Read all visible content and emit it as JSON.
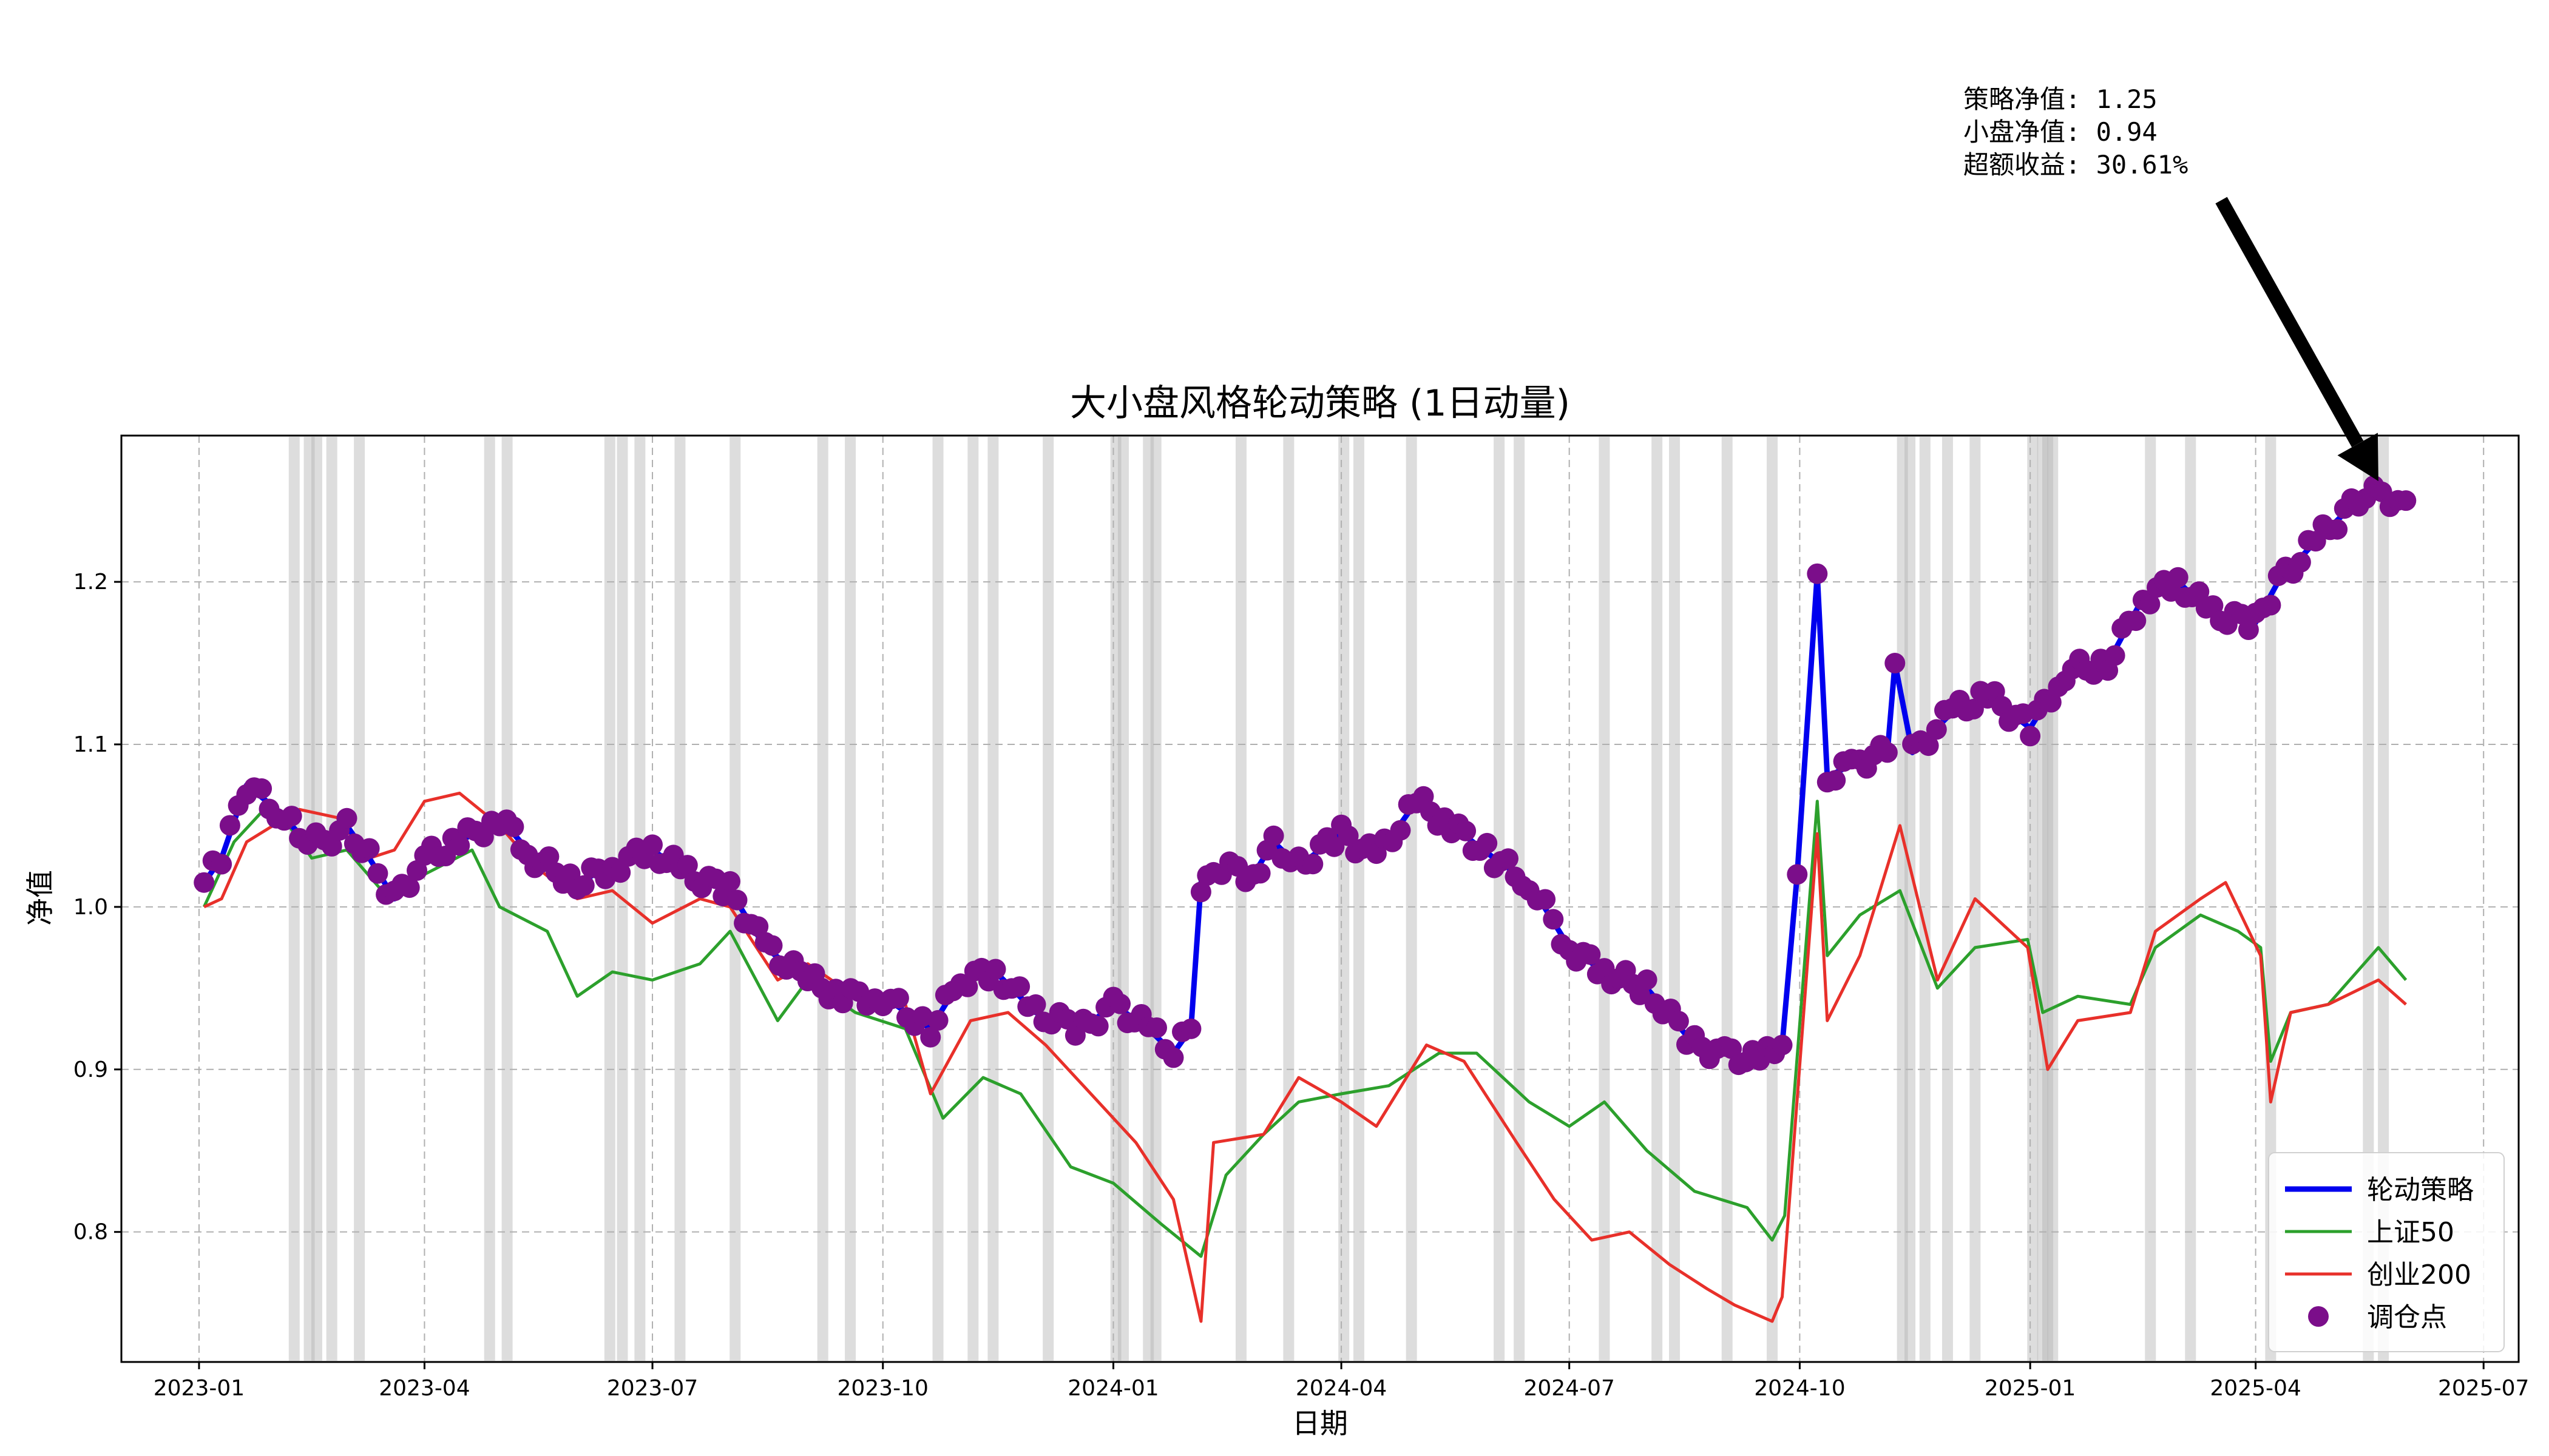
{
  "chart_data": {
    "type": "line",
    "title": "大小盘风格轮动策略 (1日动量)",
    "xlabel": "日期",
    "ylabel": "净值",
    "xlim": [
      "2022-12-01",
      "2025-07-15"
    ],
    "ylim": [
      0.72,
      1.29
    ],
    "grid": true,
    "legend_position": "lower-right",
    "x_ticks": [
      "2023-01",
      "2023-04",
      "2023-07",
      "2023-10",
      "2024-01",
      "2024-04",
      "2024-07",
      "2024-10",
      "2025-01",
      "2025-04",
      "2025-07"
    ],
    "y_ticks": [
      {
        "value": 0.8,
        "label": "0.8"
      },
      {
        "value": 0.9,
        "label": "0.9"
      },
      {
        "value": 1.0,
        "label": "1.0"
      },
      {
        "value": 1.1,
        "label": "1.1"
      },
      {
        "value": 1.2,
        "label": "1.2"
      }
    ],
    "series": [
      {
        "name": "轮动策略",
        "color": "#0000ee",
        "points": [
          [
            "2023-01-03",
            1.015
          ],
          [
            "2023-01-10",
            1.03
          ],
          [
            "2023-01-20",
            1.075
          ],
          [
            "2023-02-01",
            1.06
          ],
          [
            "2023-02-10",
            1.045
          ],
          [
            "2023-02-20",
            1.04
          ],
          [
            "2023-03-01",
            1.05
          ],
          [
            "2023-03-10",
            1.03
          ],
          [
            "2023-03-20",
            1.005
          ],
          [
            "2023-04-01",
            1.03
          ],
          [
            "2023-04-15",
            1.04
          ],
          [
            "2023-05-01",
            1.055
          ],
          [
            "2023-05-15",
            1.03
          ],
          [
            "2023-06-01",
            1.015
          ],
          [
            "2023-06-15",
            1.025
          ],
          [
            "2023-07-01",
            1.035
          ],
          [
            "2023-07-15",
            1.02
          ],
          [
            "2023-08-01",
            1.01
          ],
          [
            "2023-08-15",
            0.975
          ],
          [
            "2023-09-01",
            0.955
          ],
          [
            "2023-09-15",
            0.945
          ],
          [
            "2023-10-01",
            0.945
          ],
          [
            "2023-10-20",
            0.925
          ],
          [
            "2023-11-01",
            0.955
          ],
          [
            "2023-11-15",
            0.96
          ],
          [
            "2023-12-01",
            0.935
          ],
          [
            "2023-12-20",
            0.925
          ],
          [
            "2024-01-01",
            0.94
          ],
          [
            "2024-01-15",
            0.925
          ],
          [
            "2024-01-25",
            0.91
          ],
          [
            "2024-02-01",
            0.925
          ],
          [
            "2024-02-05",
            1.015
          ],
          [
            "2024-02-10",
            1.025
          ],
          [
            "2024-02-26",
            1.02
          ],
          [
            "2024-03-05",
            1.04
          ],
          [
            "2024-03-15",
            1.025
          ],
          [
            "2024-04-01",
            1.045
          ],
          [
            "2024-04-15",
            1.03
          ],
          [
            "2024-05-01",
            1.065
          ],
          [
            "2024-05-15",
            1.05
          ],
          [
            "2024-06-01",
            1.03
          ],
          [
            "2024-06-15",
            1.015
          ],
          [
            "2024-07-01",
            0.975
          ],
          [
            "2024-07-15",
            0.96
          ],
          [
            "2024-08-01",
            0.95
          ],
          [
            "2024-08-20",
            0.915
          ],
          [
            "2024-09-01",
            0.91
          ],
          [
            "2024-09-15",
            0.905
          ],
          [
            "2024-09-24",
            0.915
          ],
          [
            "2024-09-30",
            1.02
          ],
          [
            "2024-10-08",
            1.205
          ],
          [
            "2024-10-12",
            1.08
          ],
          [
            "2024-10-25",
            1.09
          ],
          [
            "2024-11-05",
            1.095
          ],
          [
            "2024-11-08",
            1.15
          ],
          [
            "2024-11-15",
            1.095
          ],
          [
            "2024-12-01",
            1.12
          ],
          [
            "2024-12-15",
            1.13
          ],
          [
            "2025-01-01",
            1.11
          ],
          [
            "2025-01-15",
            1.145
          ],
          [
            "2025-02-01",
            1.15
          ],
          [
            "2025-02-15",
            1.19
          ],
          [
            "2025-03-01",
            1.2
          ],
          [
            "2025-03-15",
            1.18
          ],
          [
            "2025-04-01",
            1.175
          ],
          [
            "2025-04-10",
            1.2
          ],
          [
            "2025-04-25",
            1.225
          ],
          [
            "2025-05-15",
            1.255
          ],
          [
            "2025-05-31",
            1.25
          ]
        ]
      },
      {
        "name": "上证50",
        "color": "#2ca02c",
        "points": [
          [
            "2023-01-03",
            1.0
          ],
          [
            "2023-01-15",
            1.04
          ],
          [
            "2023-01-30",
            1.065
          ],
          [
            "2023-02-15",
            1.03
          ],
          [
            "2023-03-01",
            1.035
          ],
          [
            "2023-03-15",
            1.01
          ],
          [
            "2023-04-01",
            1.02
          ],
          [
            "2023-04-20",
            1.035
          ],
          [
            "2023-05-01",
            1.0
          ],
          [
            "2023-05-20",
            0.985
          ],
          [
            "2023-06-01",
            0.945
          ],
          [
            "2023-06-15",
            0.96
          ],
          [
            "2023-07-01",
            0.955
          ],
          [
            "2023-07-20",
            0.965
          ],
          [
            "2023-08-01",
            0.985
          ],
          [
            "2023-08-20",
            0.93
          ],
          [
            "2023-09-01",
            0.955
          ],
          [
            "2023-09-20",
            0.935
          ],
          [
            "2023-10-10",
            0.925
          ],
          [
            "2023-10-25",
            0.87
          ],
          [
            "2023-11-10",
            0.895
          ],
          [
            "2023-11-25",
            0.885
          ],
          [
            "2023-12-15",
            0.84
          ],
          [
            "2024-01-01",
            0.83
          ],
          [
            "2024-01-20",
            0.805
          ],
          [
            "2024-02-05",
            0.785
          ],
          [
            "2024-02-15",
            0.835
          ],
          [
            "2024-03-01",
            0.86
          ],
          [
            "2024-03-15",
            0.88
          ],
          [
            "2024-04-01",
            0.885
          ],
          [
            "2024-04-20",
            0.89
          ],
          [
            "2024-05-10",
            0.91
          ],
          [
            "2024-05-25",
            0.91
          ],
          [
            "2024-06-15",
            0.88
          ],
          [
            "2024-07-01",
            0.865
          ],
          [
            "2024-07-15",
            0.88
          ],
          [
            "2024-08-01",
            0.85
          ],
          [
            "2024-08-20",
            0.825
          ],
          [
            "2024-09-10",
            0.815
          ],
          [
            "2024-09-20",
            0.795
          ],
          [
            "2024-09-25",
            0.81
          ],
          [
            "2024-10-08",
            1.065
          ],
          [
            "2024-10-12",
            0.97
          ],
          [
            "2024-10-25",
            0.995
          ],
          [
            "2024-11-10",
            1.01
          ],
          [
            "2024-11-25",
            0.95
          ],
          [
            "2024-12-10",
            0.975
          ],
          [
            "2024-12-31",
            0.98
          ],
          [
            "2025-01-06",
            0.935
          ],
          [
            "2025-01-20",
            0.945
          ],
          [
            "2025-02-10",
            0.94
          ],
          [
            "2025-02-20",
            0.975
          ],
          [
            "2025-03-10",
            0.995
          ],
          [
            "2025-03-25",
            0.985
          ],
          [
            "2025-04-03",
            0.975
          ],
          [
            "2025-04-07",
            0.905
          ],
          [
            "2025-04-15",
            0.935
          ],
          [
            "2025-04-30",
            0.94
          ],
          [
            "2025-05-20",
            0.975
          ],
          [
            "2025-05-31",
            0.955
          ]
        ]
      },
      {
        "name": "创业200",
        "color": "#e8302a",
        "points": [
          [
            "2023-01-03",
            1.0
          ],
          [
            "2023-01-10",
            1.005
          ],
          [
            "2023-01-20",
            1.04
          ],
          [
            "2023-02-10",
            1.06
          ],
          [
            "2023-02-25",
            1.055
          ],
          [
            "2023-03-10",
            1.03
          ],
          [
            "2023-03-20",
            1.035
          ],
          [
            "2023-04-01",
            1.065
          ],
          [
            "2023-04-15",
            1.07
          ],
          [
            "2023-05-01",
            1.05
          ],
          [
            "2023-05-15",
            1.025
          ],
          [
            "2023-06-01",
            1.005
          ],
          [
            "2023-06-15",
            1.01
          ],
          [
            "2023-07-01",
            0.99
          ],
          [
            "2023-07-20",
            1.005
          ],
          [
            "2023-08-01",
            1.0
          ],
          [
            "2023-08-20",
            0.955
          ],
          [
            "2023-09-01",
            0.965
          ],
          [
            "2023-09-20",
            0.945
          ],
          [
            "2023-10-10",
            0.94
          ],
          [
            "2023-10-20",
            0.885
          ],
          [
            "2023-11-05",
            0.93
          ],
          [
            "2023-11-20",
            0.935
          ],
          [
            "2023-12-05",
            0.915
          ],
          [
            "2023-12-20",
            0.89
          ],
          [
            "2024-01-10",
            0.855
          ],
          [
            "2024-01-25",
            0.82
          ],
          [
            "2024-02-05",
            0.745
          ],
          [
            "2024-02-10",
            0.855
          ],
          [
            "2024-03-01",
            0.86
          ],
          [
            "2024-03-15",
            0.895
          ],
          [
            "2024-04-01",
            0.88
          ],
          [
            "2024-04-15",
            0.865
          ],
          [
            "2024-05-05",
            0.915
          ],
          [
            "2024-05-20",
            0.905
          ],
          [
            "2024-06-10",
            0.855
          ],
          [
            "2024-06-25",
            0.82
          ],
          [
            "2024-07-10",
            0.795
          ],
          [
            "2024-07-25",
            0.8
          ],
          [
            "2024-08-10",
            0.78
          ],
          [
            "2024-08-25",
            0.765
          ],
          [
            "2024-09-05",
            0.755
          ],
          [
            "2024-09-20",
            0.745
          ],
          [
            "2024-09-24",
            0.76
          ],
          [
            "2024-10-08",
            1.045
          ],
          [
            "2024-10-12",
            0.93
          ],
          [
            "2024-10-25",
            0.97
          ],
          [
            "2024-11-10",
            1.05
          ],
          [
            "2024-11-25",
            0.955
          ],
          [
            "2024-12-10",
            1.005
          ],
          [
            "2024-12-31",
            0.975
          ],
          [
            "2025-01-08",
            0.9
          ],
          [
            "2025-01-20",
            0.93
          ],
          [
            "2025-02-10",
            0.935
          ],
          [
            "2025-02-20",
            0.985
          ],
          [
            "2025-03-10",
            1.005
          ],
          [
            "2025-03-20",
            1.015
          ],
          [
            "2025-04-03",
            0.97
          ],
          [
            "2025-04-07",
            0.88
          ],
          [
            "2025-04-15",
            0.935
          ],
          [
            "2025-04-30",
            0.94
          ],
          [
            "2025-05-20",
            0.955
          ],
          [
            "2025-05-31",
            0.94
          ]
        ]
      }
    ],
    "rebalance_points": {
      "name": "调仓点",
      "color": "#7b0e8a"
    },
    "rebalance_bands": [
      "2023-02-08",
      "2023-02-14",
      "2023-02-17",
      "2023-02-23",
      "2023-03-06",
      "2023-04-27",
      "2023-05-04",
      "2023-06-14",
      "2023-06-19",
      "2023-06-26",
      "2023-07-12",
      "2023-08-03",
      "2023-09-07",
      "2023-09-18",
      "2023-10-23",
      "2023-11-06",
      "2023-11-14",
      "2023-12-06",
      "2024-01-02",
      "2024-01-05",
      "2024-01-15",
      "2024-01-18",
      "2024-02-21",
      "2024-03-11",
      "2024-04-02",
      "2024-04-08",
      "2024-04-29",
      "2024-06-03",
      "2024-06-11",
      "2024-07-15",
      "2024-08-05",
      "2024-08-12",
      "2024-09-02",
      "2024-09-20",
      "2024-11-11",
      "2024-11-14",
      "2024-11-20",
      "2024-11-29",
      "2024-12-10",
      "2025-01-02",
      "2025-01-06",
      "2025-01-08",
      "2025-01-10",
      "2025-02-18",
      "2025-03-06",
      "2025-04-07",
      "2025-05-16",
      "2025-05-22"
    ],
    "annotation": {
      "lines": [
        "策略净值: 1.25",
        "小盘净值: 0.94",
        "超额收益: 30.61%"
      ],
      "target_date": "2025-05-20",
      "target_value": 1.262
    }
  }
}
